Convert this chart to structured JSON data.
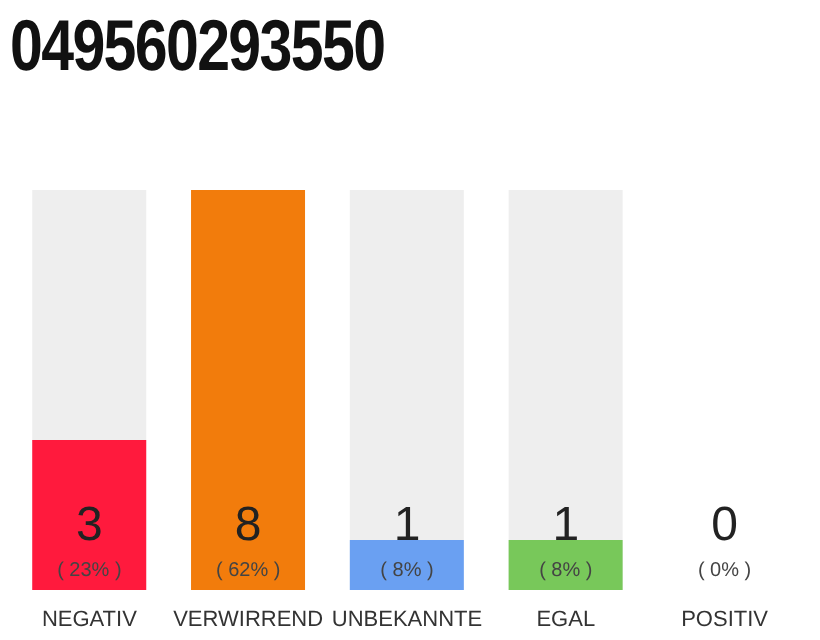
{
  "chart_data": {
    "type": "bar",
    "title": "049560293550",
    "categories": [
      "NEGATIV",
      "VERWIRREND",
      "UNBEKANNTE",
      "EGAL",
      "POSITIV"
    ],
    "values": [
      3,
      8,
      1,
      1,
      0
    ],
    "colors": [
      "#ff1a3d",
      "#f27c0c",
      "#6aa0f2",
      "#78c85a",
      "#9a9a9a"
    ],
    "value_labels": [
      "3",
      "8",
      "1",
      "1",
      "0"
    ],
    "annotations": [
      "( 23% )",
      "( 62% )",
      "( 8% )",
      "( 8% )",
      "( 0% )"
    ],
    "tick_labels": "x",
    "grid": false,
    "legend": false
  }
}
